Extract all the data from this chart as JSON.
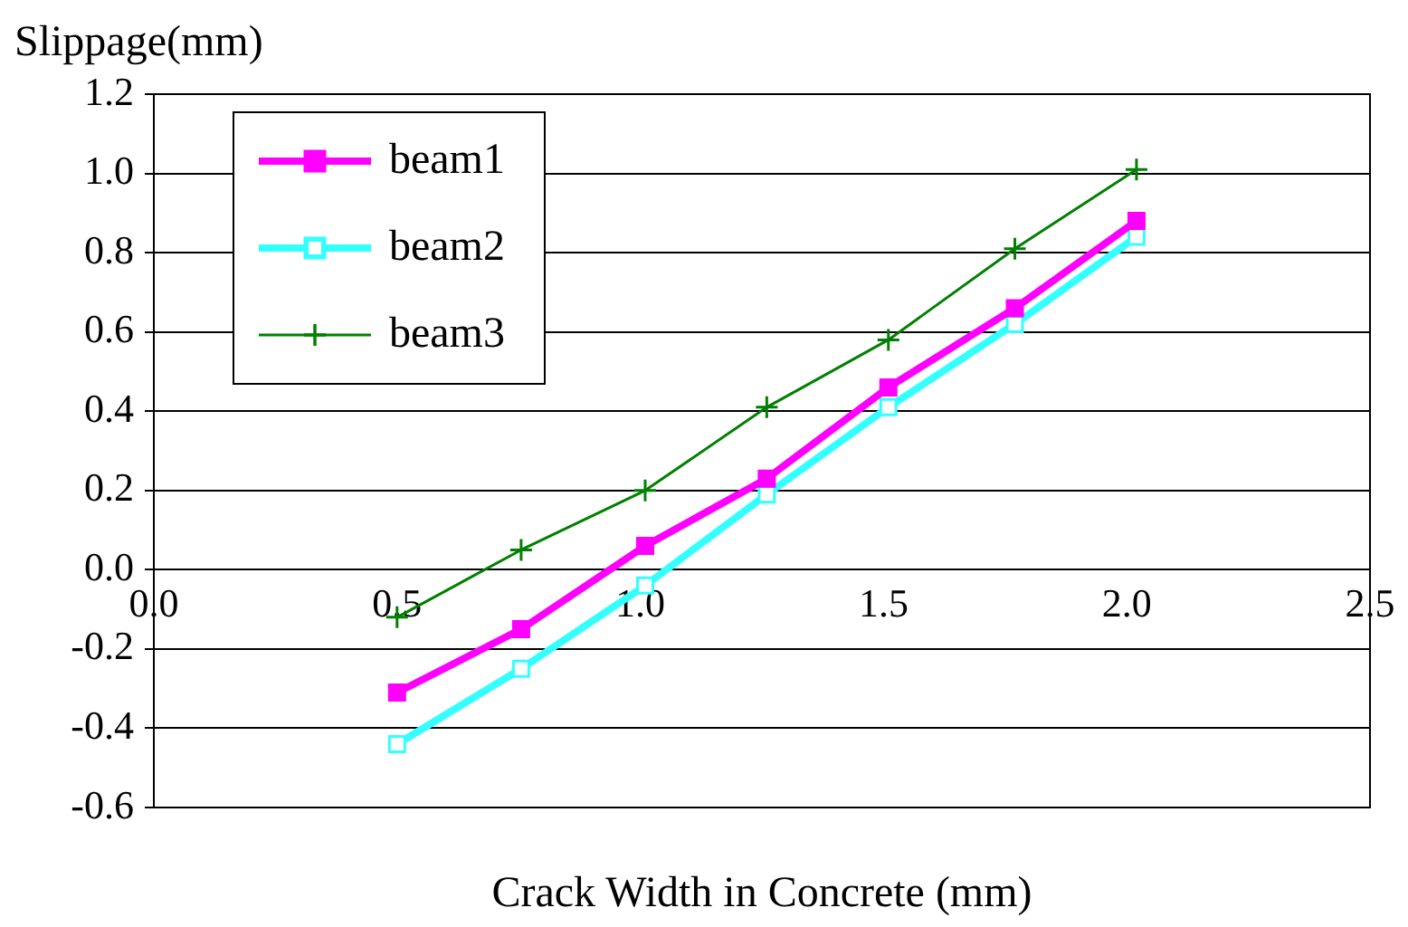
{
  "chart_data": {
    "type": "line",
    "xlabel": "Crack Width in Concrete (mm)",
    "ylabel": "Slippage(mm)",
    "x": [
      0.5,
      0.755,
      1.01,
      1.26,
      1.51,
      1.77,
      2.02
    ],
    "series": [
      {
        "name": "beam1",
        "color": "#ff00ff",
        "marker": "square",
        "values": [
          -0.31,
          -0.15,
          0.06,
          0.23,
          0.46,
          0.66,
          0.88
        ]
      },
      {
        "name": "beam2",
        "color": "#33ffff",
        "marker": "square_open",
        "values": [
          -0.44,
          -0.25,
          -0.04,
          0.19,
          0.41,
          0.62,
          0.84
        ]
      },
      {
        "name": "beam3",
        "color": "#008000",
        "marker": "cross",
        "values": [
          -0.12,
          0.05,
          0.2,
          0.41,
          0.58,
          0.81,
          1.01
        ]
      }
    ],
    "xlim": [
      0,
      2.5
    ],
    "xticks": [
      {
        "value": 0,
        "label": "0.0"
      },
      {
        "value": 0.5,
        "label": "0.5"
      },
      {
        "value": 1,
        "label": "1.0"
      },
      {
        "value": 1.5,
        "label": "1.5"
      },
      {
        "value": 2,
        "label": "2.0"
      },
      {
        "value": 2.5,
        "label": "2.5"
      }
    ],
    "ylim": [
      -0.6,
      1.2
    ],
    "yticks": [
      {
        "value": -0.6,
        "label": "-0.6"
      },
      {
        "value": -0.4,
        "label": "-0.4"
      },
      {
        "value": -0.2,
        "label": "-0.2"
      },
      {
        "value": 0,
        "label": "0.0"
      },
      {
        "value": 0.2,
        "label": "0.2"
      },
      {
        "value": 0.4,
        "label": "0.4"
      },
      {
        "value": 0.6,
        "label": "0.6"
      },
      {
        "value": 0.8,
        "label": "0.8"
      },
      {
        "value": 1,
        "label": "1.0"
      },
      {
        "value": 1.2,
        "label": "1.2"
      }
    ],
    "grid": "y",
    "legend": "top left",
    "line_style": "solid"
  }
}
